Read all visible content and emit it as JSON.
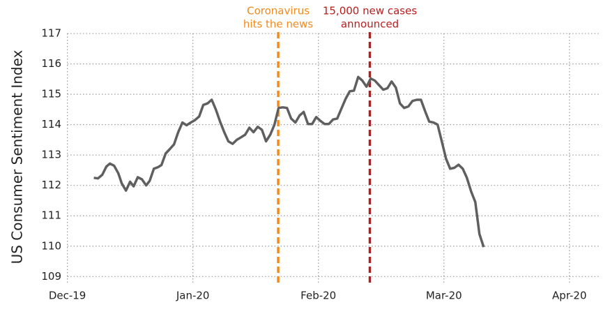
{
  "chart_data": {
    "type": "line",
    "y_label": "US Consumer Sentiment Index",
    "xlim": [
      -0.12,
      4.24
    ],
    "ylim": [
      108.8,
      117.3
    ],
    "xticks": [
      {
        "value": 0,
        "label": "Dec-19"
      },
      {
        "value": 1,
        "label": "Jan-20"
      },
      {
        "value": 2,
        "label": "Feb-20"
      },
      {
        "value": 3,
        "label": "Mar-20"
      },
      {
        "value": 4,
        "label": "Apr-20"
      }
    ],
    "yticks": [
      109,
      110,
      111,
      112,
      113,
      114,
      115,
      116,
      117
    ],
    "grid": true,
    "vlines": [
      {
        "x": 1.68,
        "color": "#f28a1e",
        "label": [
          "Coronavirus",
          "hits the news"
        ]
      },
      {
        "x": 2.41,
        "color": "#b81d1d",
        "label": [
          "15,000 new cases",
          "announced"
        ]
      }
    ],
    "series": [
      {
        "name": "US Consumer Sentiment Index",
        "color": "#5f5f5f",
        "x": [
          0.211,
          0.244,
          0.278,
          0.311,
          0.339,
          0.372,
          0.406,
          0.433,
          0.467,
          0.5,
          0.528,
          0.561,
          0.594,
          0.628,
          0.656,
          0.689,
          0.722,
          0.75,
          0.783,
          0.817,
          0.85,
          0.883,
          0.917,
          0.95,
          0.983,
          1.017,
          1.05,
          1.083,
          1.117,
          1.15,
          1.183,
          1.217,
          1.25,
          1.283,
          1.317,
          1.35,
          1.383,
          1.417,
          1.45,
          1.483,
          1.517,
          1.55,
          1.583,
          1.617,
          1.65,
          1.683,
          1.717,
          1.75,
          1.783,
          1.817,
          1.85,
          1.883,
          1.917,
          1.95,
          1.983,
          2.017,
          2.05,
          2.083,
          2.117,
          2.15,
          2.183,
          2.217,
          2.25,
          2.283,
          2.317,
          2.35,
          2.383,
          2.417,
          2.45,
          2.483,
          2.517,
          2.55,
          2.583,
          2.617,
          2.65,
          2.683,
          2.717,
          2.75,
          2.783,
          2.817,
          2.85,
          2.883,
          2.917,
          2.95,
          2.983,
          3.017,
          3.05,
          3.083,
          3.117,
          3.15,
          3.183,
          3.217,
          3.25,
          3.283,
          3.317
        ],
        "values": [
          112.25,
          112.23,
          112.35,
          112.62,
          112.72,
          112.65,
          112.4,
          112.07,
          111.83,
          112.12,
          111.97,
          112.27,
          112.2,
          112.0,
          112.15,
          112.55,
          112.6,
          112.67,
          113.05,
          113.2,
          113.35,
          113.75,
          114.07,
          113.98,
          114.07,
          114.15,
          114.27,
          114.65,
          114.7,
          114.82,
          114.5,
          114.1,
          113.75,
          113.45,
          113.37,
          113.5,
          113.58,
          113.67,
          113.9,
          113.75,
          113.93,
          113.83,
          113.45,
          113.67,
          114.0,
          114.55,
          114.57,
          114.55,
          114.2,
          114.07,
          114.3,
          114.42,
          114.02,
          114.02,
          114.25,
          114.12,
          114.02,
          114.02,
          114.17,
          114.2,
          114.52,
          114.85,
          115.1,
          115.12,
          115.57,
          115.45,
          115.25,
          115.52,
          115.45,
          115.3,
          115.15,
          115.2,
          115.42,
          115.22,
          114.7,
          114.55,
          114.6,
          114.78,
          114.82,
          114.82,
          114.45,
          114.1,
          114.07,
          114.0,
          113.45,
          112.88,
          112.55,
          112.58,
          112.68,
          112.55,
          112.25,
          111.8,
          111.45,
          110.4,
          109.97
        ]
      }
    ]
  }
}
